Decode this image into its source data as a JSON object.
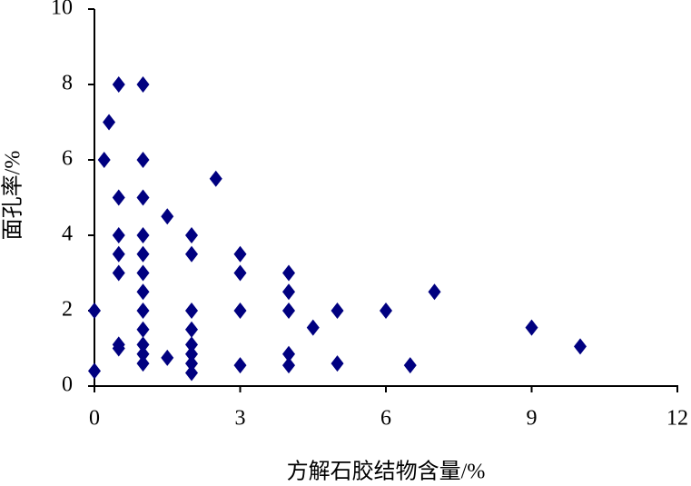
{
  "chart_data": {
    "type": "scatter",
    "x_label": "方解石胶结物含量/%",
    "y_label": "面孔率/%",
    "xlim": [
      0,
      12
    ],
    "xticks": [
      0,
      3,
      6,
      9,
      12
    ],
    "ylim": [
      0,
      10
    ],
    "yticks": [
      0,
      2,
      4,
      6,
      8,
      10
    ],
    "color": "#000080",
    "x": [
      0,
      0,
      0.2,
      0.3,
      0.5,
      0.5,
      0.5,
      0.5,
      0.5,
      0.5,
      0.5,
      1,
      1,
      1,
      1,
      1,
      1,
      1,
      1,
      1,
      1,
      1,
      1,
      1.5,
      1.5,
      2,
      2,
      2,
      2,
      2,
      2,
      2,
      2,
      2.5,
      3,
      3,
      3,
      3,
      4,
      4,
      4,
      4,
      4,
      4.5,
      5,
      5,
      6,
      6.5,
      7,
      9,
      10
    ],
    "y": [
      0.4,
      2,
      6,
      7,
      8,
      5,
      4,
      3.5,
      3,
      1,
      1.1,
      8,
      6,
      5,
      4,
      3.5,
      3,
      2.5,
      2,
      1.5,
      1.1,
      0.85,
      0.6,
      4.5,
      0.75,
      4,
      3.5,
      2,
      1.5,
      1.1,
      0.85,
      0.6,
      0.35,
      5.5,
      3.5,
      3,
      2,
      0.55,
      3,
      2.5,
      2,
      0.85,
      0.55,
      1.55,
      2,
      0.6,
      2,
      0.55,
      2.5,
      1.55,
      1.05
    ]
  }
}
